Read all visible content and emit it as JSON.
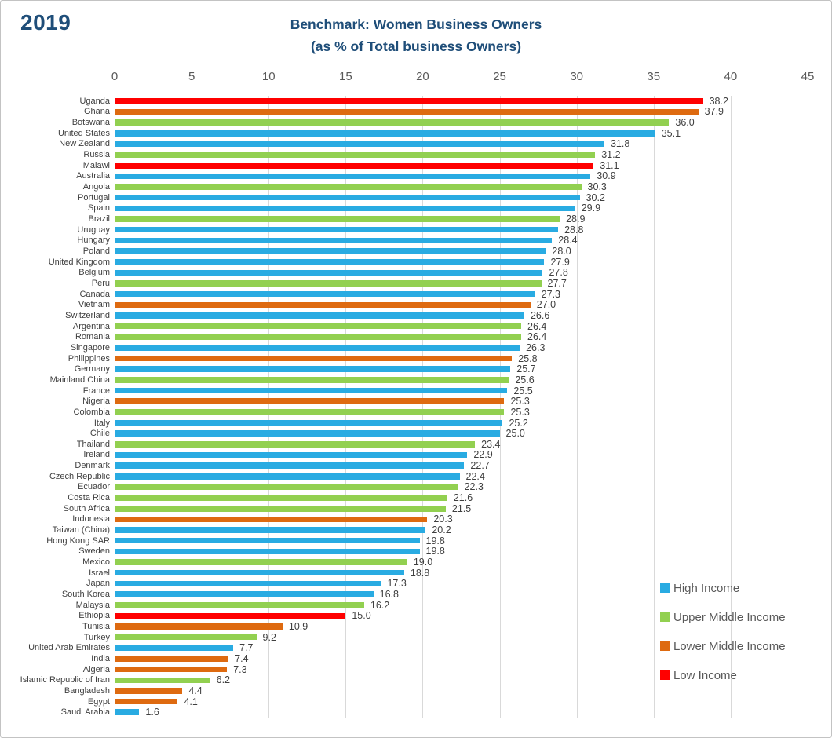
{
  "header": {
    "year": "2019",
    "title_line1": "Benchmark: Women Business Owners",
    "title_line2": "(as % of Total business Owners)"
  },
  "colors": {
    "title": "#1F4E79",
    "high": "#29ABE2",
    "upper_middle": "#92D050",
    "lower_middle": "#DE6A10",
    "low": "#FF0000",
    "gridline": "#D9D9D9"
  },
  "chart_data": {
    "type": "bar",
    "orientation": "horizontal",
    "title": "Benchmark: Women Business Owners (as % of Total business Owners)",
    "year": "2019",
    "xlabel": "",
    "ylabel": "",
    "xlim": [
      0,
      45
    ],
    "x_ticks": [
      0,
      5,
      10,
      15,
      20,
      25,
      30,
      35,
      40,
      45
    ],
    "grid": true,
    "legend_position": "bottom-right",
    "legend": [
      {
        "key": "high",
        "label": "High Income"
      },
      {
        "key": "upper_middle",
        "label": "Upper Middle Income"
      },
      {
        "key": "lower_middle",
        "label": "Lower Middle Income"
      },
      {
        "key": "low",
        "label": "Low Income"
      }
    ],
    "rows": [
      {
        "country": "Uganda",
        "value": 38.2,
        "group": "low"
      },
      {
        "country": "Ghana",
        "value": 37.9,
        "group": "lower_middle"
      },
      {
        "country": "Botswana",
        "value": 36.0,
        "group": "upper_middle"
      },
      {
        "country": "United States",
        "value": 35.1,
        "group": "high"
      },
      {
        "country": "New Zealand",
        "value": 31.8,
        "group": "high"
      },
      {
        "country": "Russia",
        "value": 31.2,
        "group": "upper_middle"
      },
      {
        "country": "Malawi",
        "value": 31.1,
        "group": "low"
      },
      {
        "country": "Australia",
        "value": 30.9,
        "group": "high"
      },
      {
        "country": "Angola",
        "value": 30.3,
        "group": "upper_middle"
      },
      {
        "country": "Portugal",
        "value": 30.2,
        "group": "high"
      },
      {
        "country": "Spain",
        "value": 29.9,
        "group": "high"
      },
      {
        "country": "Brazil",
        "value": 28.9,
        "group": "upper_middle"
      },
      {
        "country": "Uruguay",
        "value": 28.8,
        "group": "high"
      },
      {
        "country": "Hungary",
        "value": 28.4,
        "group": "high"
      },
      {
        "country": "Poland",
        "value": 28.0,
        "group": "high"
      },
      {
        "country": "United Kingdom",
        "value": 27.9,
        "group": "high"
      },
      {
        "country": "Belgium",
        "value": 27.8,
        "group": "high"
      },
      {
        "country": "Peru",
        "value": 27.7,
        "group": "upper_middle"
      },
      {
        "country": "Canada",
        "value": 27.3,
        "group": "high"
      },
      {
        "country": "Vietnam",
        "value": 27.0,
        "group": "lower_middle"
      },
      {
        "country": "Switzerland",
        "value": 26.6,
        "group": "high"
      },
      {
        "country": "Argentina",
        "value": 26.4,
        "group": "upper_middle"
      },
      {
        "country": "Romania",
        "value": 26.4,
        "group": "upper_middle"
      },
      {
        "country": "Singapore",
        "value": 26.3,
        "group": "high"
      },
      {
        "country": "Philippines",
        "value": 25.8,
        "group": "lower_middle"
      },
      {
        "country": "Germany",
        "value": 25.7,
        "group": "high"
      },
      {
        "country": "Mainland China",
        "value": 25.6,
        "group": "upper_middle"
      },
      {
        "country": "France",
        "value": 25.5,
        "group": "high"
      },
      {
        "country": "Nigeria",
        "value": 25.3,
        "group": "lower_middle"
      },
      {
        "country": "Colombia",
        "value": 25.3,
        "group": "upper_middle"
      },
      {
        "country": "Italy",
        "value": 25.2,
        "group": "high"
      },
      {
        "country": "Chile",
        "value": 25.0,
        "group": "high"
      },
      {
        "country": "Thailand",
        "value": 23.4,
        "group": "upper_middle"
      },
      {
        "country": "Ireland",
        "value": 22.9,
        "group": "high"
      },
      {
        "country": "Denmark",
        "value": 22.7,
        "group": "high"
      },
      {
        "country": "Czech Republic",
        "value": 22.4,
        "group": "high"
      },
      {
        "country": "Ecuador",
        "value": 22.3,
        "group": "upper_middle"
      },
      {
        "country": "Costa Rica",
        "value": 21.6,
        "group": "upper_middle"
      },
      {
        "country": "South Africa",
        "value": 21.5,
        "group": "upper_middle"
      },
      {
        "country": "Indonesia",
        "value": 20.3,
        "group": "lower_middle"
      },
      {
        "country": "Taiwan (China)",
        "value": 20.2,
        "group": "high"
      },
      {
        "country": "Hong Kong SAR",
        "value": 19.8,
        "group": "high"
      },
      {
        "country": "Sweden",
        "value": 19.8,
        "group": "high"
      },
      {
        "country": "Mexico",
        "value": 19.0,
        "group": "upper_middle"
      },
      {
        "country": "Israel",
        "value": 18.8,
        "group": "high"
      },
      {
        "country": "Japan",
        "value": 17.3,
        "group": "high"
      },
      {
        "country": "South Korea",
        "value": 16.8,
        "group": "high"
      },
      {
        "country": "Malaysia",
        "value": 16.2,
        "group": "upper_middle"
      },
      {
        "country": "Ethiopia",
        "value": 15.0,
        "group": "low"
      },
      {
        "country": "Tunisia",
        "value": 10.9,
        "group": "lower_middle"
      },
      {
        "country": "Turkey",
        "value": 9.2,
        "group": "upper_middle"
      },
      {
        "country": "United Arab Emirates",
        "value": 7.7,
        "group": "high"
      },
      {
        "country": "India",
        "value": 7.4,
        "group": "lower_middle"
      },
      {
        "country": "Algeria",
        "value": 7.3,
        "group": "lower_middle"
      },
      {
        "country": "Islamic Republic of Iran",
        "value": 6.2,
        "group": "upper_middle"
      },
      {
        "country": "Bangladesh",
        "value": 4.4,
        "group": "lower_middle"
      },
      {
        "country": "Egypt",
        "value": 4.1,
        "group": "lower_middle"
      },
      {
        "country": "Saudi Arabia",
        "value": 1.6,
        "group": "high"
      }
    ]
  }
}
